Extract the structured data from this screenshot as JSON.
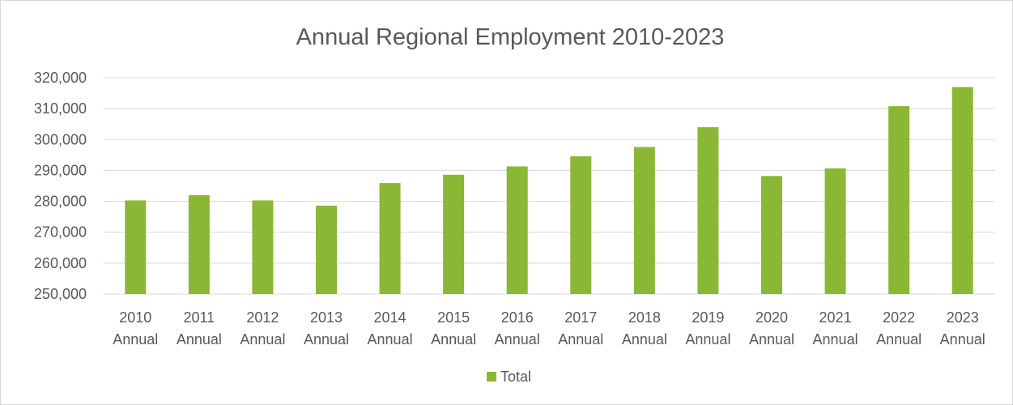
{
  "chart_data": {
    "type": "bar",
    "title": "Annual Regional Employment 2010-2023",
    "categories": [
      [
        "2010",
        "Annual"
      ],
      [
        "2011",
        "Annual"
      ],
      [
        "2012",
        "Annual"
      ],
      [
        "2013",
        "Annual"
      ],
      [
        "2014",
        "Annual"
      ],
      [
        "2015",
        "Annual"
      ],
      [
        "2016",
        "Annual"
      ],
      [
        "2017",
        "Annual"
      ],
      [
        "2018",
        "Annual"
      ],
      [
        "2019",
        "Annual"
      ],
      [
        "2020",
        "Annual"
      ],
      [
        "2021",
        "Annual"
      ],
      [
        "2022",
        "Annual"
      ],
      [
        "2023",
        "Annual"
      ]
    ],
    "series": [
      {
        "name": "Total",
        "values": [
          280300,
          282000,
          280300,
          278600,
          285900,
          288600,
          291300,
          294600,
          297600,
          304000,
          288200,
          290700,
          310800,
          317000
        ]
      }
    ],
    "ylim": [
      250000,
      320000
    ],
    "yticks": [
      "250,000",
      "260,000",
      "270,000",
      "280,000",
      "290,000",
      "300,000",
      "310,000",
      "320,000"
    ],
    "ytick_values": [
      250000,
      260000,
      270000,
      280000,
      290000,
      300000,
      310000,
      320000
    ],
    "grid": true,
    "legend_position": "bottom",
    "colors": {
      "bar": "#8ab834",
      "grid": "#d9d9d9",
      "text": "#595959"
    }
  }
}
